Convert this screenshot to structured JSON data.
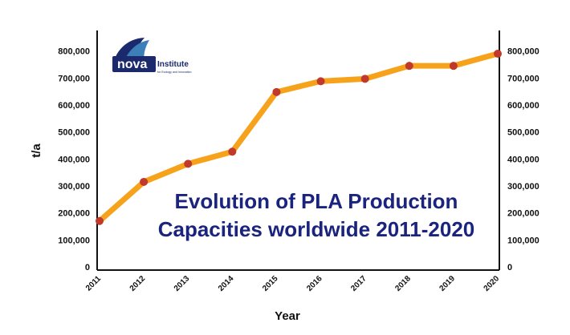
{
  "chart_data": {
    "type": "line",
    "title_lines": [
      "Evolution of PLA Production",
      "Capacities worldwide 2011-2020"
    ],
    "xlabel": "Year",
    "ylabel": "t/a",
    "x": [
      "2011",
      "2012",
      "2013",
      "2014",
      "2015",
      "2016",
      "2017",
      "2018",
      "2019",
      "2020"
    ],
    "series": [
      {
        "values": [
          170000,
          315000,
          382000,
          427000,
          648000,
          688000,
          697000,
          745000,
          745000,
          790000
        ]
      }
    ],
    "ylim": [
      0,
      900000
    ],
    "yticks": [
      0,
      100000,
      200000,
      300000,
      400000,
      500000,
      600000,
      700000,
      800000
    ],
    "ytick_labels": [
      "0",
      "100,000",
      "200,000",
      "300,000",
      "400,000",
      "500,000",
      "600,000",
      "700,000",
      "800,000"
    ],
    "dual_y_axis": true,
    "grid": false,
    "line_color": "#f7a21b",
    "marker_color": "#c0392b",
    "title_color": "#1a237e"
  },
  "logo": {
    "name": "nova",
    "word": "Institute",
    "tagline": "for Ecology and Innovation",
    "colors": {
      "primary": "#1a2a6c",
      "accent": "#3d7fb8"
    }
  }
}
